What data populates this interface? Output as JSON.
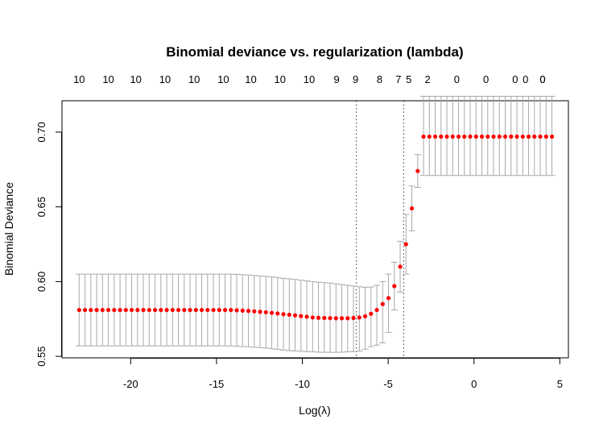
{
  "chart_data": {
    "type": "scatter",
    "title": "Binomial deviance vs. regularization (lambda)",
    "xlabel": "Log(λ)",
    "ylabel": "Binomial Deviance",
    "xlim": [
      -24,
      5.5
    ],
    "ylim": [
      0.549,
      0.721
    ],
    "xticks": [
      -20,
      -15,
      -10,
      -5,
      0,
      5
    ],
    "yticks": [
      0.55,
      0.6,
      0.65,
      0.7
    ],
    "ytick_labels": [
      "0.55",
      "0.60",
      "0.65",
      "0.70"
    ],
    "top_axis": {
      "x": [
        -23.0,
        -21.3,
        -19.7,
        -18.0,
        -16.3,
        -14.6,
        -13.0,
        -11.3,
        -9.6,
        -8.0,
        -6.9,
        -5.5,
        -4.4,
        -3.8,
        -2.7,
        -1.0,
        0.7,
        2.4,
        3.0,
        4.0,
        4.0
      ],
      "labels": [
        "10",
        "10",
        "10",
        "10",
        "10",
        "10",
        "10",
        "10",
        "10",
        "9",
        "9",
        "8",
        "7",
        "5",
        "2",
        "0",
        "0",
        "0",
        "0",
        "0",
        "0"
      ]
    },
    "vlines": [
      -6.85,
      -4.1
    ],
    "point_color": "#ff0000",
    "errorbar_color": "#a9a9a9",
    "series": [
      {
        "x": [
          -23.0,
          -22.66,
          -22.32,
          -21.98,
          -21.64,
          -21.3,
          -20.96,
          -20.62,
          -20.28,
          -19.94,
          -19.6,
          -19.26,
          -18.92,
          -18.58,
          -18.24,
          -17.9,
          -17.56,
          -17.22,
          -16.88,
          -16.54,
          -16.2,
          -15.86,
          -15.52,
          -15.18,
          -14.84,
          -14.5,
          -14.16,
          -13.82,
          -13.48,
          -13.14,
          -12.8,
          -12.46,
          -12.12,
          -11.78,
          -11.44,
          -11.1,
          -10.76,
          -10.42,
          -10.08,
          -9.74,
          -9.4,
          -9.06,
          -8.72,
          -8.38,
          -8.04,
          -7.7,
          -7.36,
          -7.02,
          -6.68,
          -6.34,
          -6.0,
          -5.66,
          -5.32,
          -4.98,
          -4.64,
          -4.3,
          -3.96,
          -3.62,
          -3.28,
          -2.94,
          -2.6,
          -2.26,
          -1.92,
          -1.58,
          -1.24,
          -0.9,
          -0.56,
          -0.22,
          0.12,
          0.46,
          0.8,
          1.14,
          1.48,
          1.82,
          2.16,
          2.5,
          2.84,
          3.18,
          3.52,
          3.86,
          4.2,
          4.54
        ],
        "y": [
          0.581,
          0.581,
          0.581,
          0.581,
          0.581,
          0.581,
          0.581,
          0.581,
          0.581,
          0.581,
          0.581,
          0.581,
          0.581,
          0.581,
          0.581,
          0.581,
          0.581,
          0.581,
          0.581,
          0.581,
          0.581,
          0.581,
          0.581,
          0.581,
          0.581,
          0.581,
          0.581,
          0.5808,
          0.5806,
          0.5804,
          0.5801,
          0.5798,
          0.5795,
          0.5791,
          0.5787,
          0.5782,
          0.5778,
          0.5774,
          0.5769,
          0.5765,
          0.576,
          0.5758,
          0.5757,
          0.5756,
          0.5755,
          0.5755,
          0.5755,
          0.5757,
          0.576,
          0.5768,
          0.5785,
          0.581,
          0.585,
          0.589,
          0.597,
          0.61,
          0.625,
          0.649,
          0.674,
          0.697,
          0.697,
          0.697,
          0.697,
          0.697,
          0.697,
          0.697,
          0.697,
          0.697,
          0.697,
          0.697,
          0.697,
          0.697,
          0.697,
          0.697,
          0.697,
          0.697,
          0.697,
          0.697,
          0.697,
          0.697,
          0.697,
          0.697
        ],
        "upper": [
          0.605,
          0.605,
          0.605,
          0.605,
          0.605,
          0.605,
          0.605,
          0.605,
          0.605,
          0.605,
          0.605,
          0.605,
          0.605,
          0.605,
          0.605,
          0.605,
          0.605,
          0.605,
          0.605,
          0.605,
          0.605,
          0.605,
          0.605,
          0.605,
          0.605,
          0.605,
          0.605,
          0.6048,
          0.6046,
          0.6044,
          0.6041,
          0.6038,
          0.6035,
          0.6031,
          0.6027,
          0.6022,
          0.6018,
          0.6014,
          0.6009,
          0.6005,
          0.6,
          0.5996,
          0.5993,
          0.599,
          0.5985,
          0.598,
          0.5975,
          0.597,
          0.5966,
          0.5962,
          0.5964,
          0.5975,
          0.6,
          0.605,
          0.613,
          0.627,
          0.645,
          0.664,
          0.685,
          0.724,
          0.724,
          0.724,
          0.724,
          0.724,
          0.724,
          0.724,
          0.724,
          0.724,
          0.724,
          0.724,
          0.724,
          0.724,
          0.724,
          0.724,
          0.724,
          0.724,
          0.724,
          0.724,
          0.724,
          0.724,
          0.724,
          0.724
        ],
        "lower": [
          0.557,
          0.557,
          0.557,
          0.557,
          0.557,
          0.557,
          0.557,
          0.557,
          0.557,
          0.557,
          0.557,
          0.557,
          0.557,
          0.557,
          0.557,
          0.557,
          0.557,
          0.557,
          0.557,
          0.557,
          0.557,
          0.557,
          0.557,
          0.557,
          0.557,
          0.557,
          0.557,
          0.5568,
          0.5566,
          0.5564,
          0.5561,
          0.5558,
          0.5555,
          0.5551,
          0.5547,
          0.5542,
          0.5538,
          0.5536,
          0.5534,
          0.5532,
          0.553,
          0.5528,
          0.5527,
          0.5527,
          0.5527,
          0.5528,
          0.553,
          0.5532,
          0.5535,
          0.5548,
          0.5565,
          0.5575,
          0.559,
          0.566,
          0.581,
          0.593,
          0.605,
          0.634,
          0.663,
          0.671,
          0.671,
          0.671,
          0.671,
          0.671,
          0.671,
          0.671,
          0.671,
          0.671,
          0.671,
          0.671,
          0.671,
          0.671,
          0.671,
          0.671,
          0.671,
          0.671,
          0.671,
          0.671,
          0.671,
          0.671,
          0.671,
          0.671
        ]
      }
    ]
  }
}
